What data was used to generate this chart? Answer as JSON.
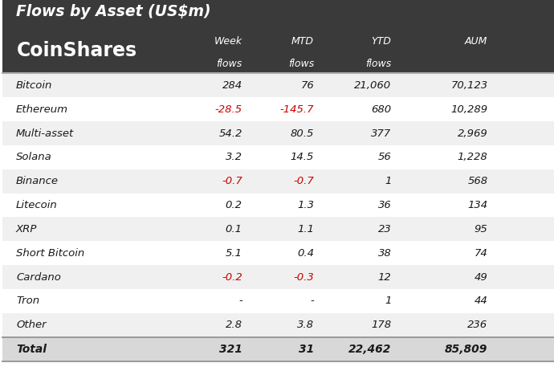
{
  "title": "Flows by Asset (US$m)",
  "logo_text": "CoinShares",
  "header_bg": "#3a3a3a",
  "header_text_color": "#ffffff",
  "body_bg": "#ffffff",
  "col_headers": [
    {
      "line1": "Week",
      "line2": "flows"
    },
    {
      "line1": "MTD",
      "line2": "flows"
    },
    {
      "line1": "YTD",
      "line2": "flows"
    },
    {
      "line1": "AUM",
      "line2": ""
    }
  ],
  "rows": [
    {
      "asset": "Bitcoin",
      "week": "284",
      "mtd": "76",
      "ytd": "21,060",
      "aum": "70,123",
      "week_neg": false,
      "mtd_neg": false
    },
    {
      "asset": "Ethereum",
      "week": "-28.5",
      "mtd": "-145.7",
      "ytd": "680",
      "aum": "10,289",
      "week_neg": true,
      "mtd_neg": true
    },
    {
      "asset": "Multi-asset",
      "week": "54.2",
      "mtd": "80.5",
      "ytd": "377",
      "aum": "2,969",
      "week_neg": false,
      "mtd_neg": false
    },
    {
      "asset": "Solana",
      "week": "3.2",
      "mtd": "14.5",
      "ytd": "56",
      "aum": "1,228",
      "week_neg": false,
      "mtd_neg": false
    },
    {
      "asset": "Binance",
      "week": "-0.7",
      "mtd": "-0.7",
      "ytd": "1",
      "aum": "568",
      "week_neg": true,
      "mtd_neg": true
    },
    {
      "asset": "Litecoin",
      "week": "0.2",
      "mtd": "1.3",
      "ytd": "36",
      "aum": "134",
      "week_neg": false,
      "mtd_neg": false
    },
    {
      "asset": "XRP",
      "week": "0.1",
      "mtd": "1.1",
      "ytd": "23",
      "aum": "95",
      "week_neg": false,
      "mtd_neg": false
    },
    {
      "asset": "Short Bitcoin",
      "week": "5.1",
      "mtd": "0.4",
      "ytd": "38",
      "aum": "74",
      "week_neg": false,
      "mtd_neg": false
    },
    {
      "asset": "Cardano",
      "week": "-0.2",
      "mtd": "-0.3",
      "ytd": "12",
      "aum": "49",
      "week_neg": true,
      "mtd_neg": true
    },
    {
      "asset": "Tron",
      "week": "-",
      "mtd": "-",
      "ytd": "1",
      "aum": "44",
      "week_neg": false,
      "mtd_neg": false
    },
    {
      "asset": "Other",
      "week": "2.8",
      "mtd": "3.8",
      "ytd": "178",
      "aum": "236",
      "week_neg": false,
      "mtd_neg": false
    }
  ],
  "total_row": {
    "asset": "Total",
    "week": "321",
    "mtd": "31",
    "ytd": "22,462",
    "aum": "85,809"
  },
  "row_colors": [
    "#f0f0f0",
    "#ffffff"
  ],
  "total_row_bg": "#d8d8d8",
  "text_color": "#1a1a1a",
  "neg_color": "#cc0000",
  "divider_color": "#999999",
  "header_divider_color": "#aaaaaa"
}
